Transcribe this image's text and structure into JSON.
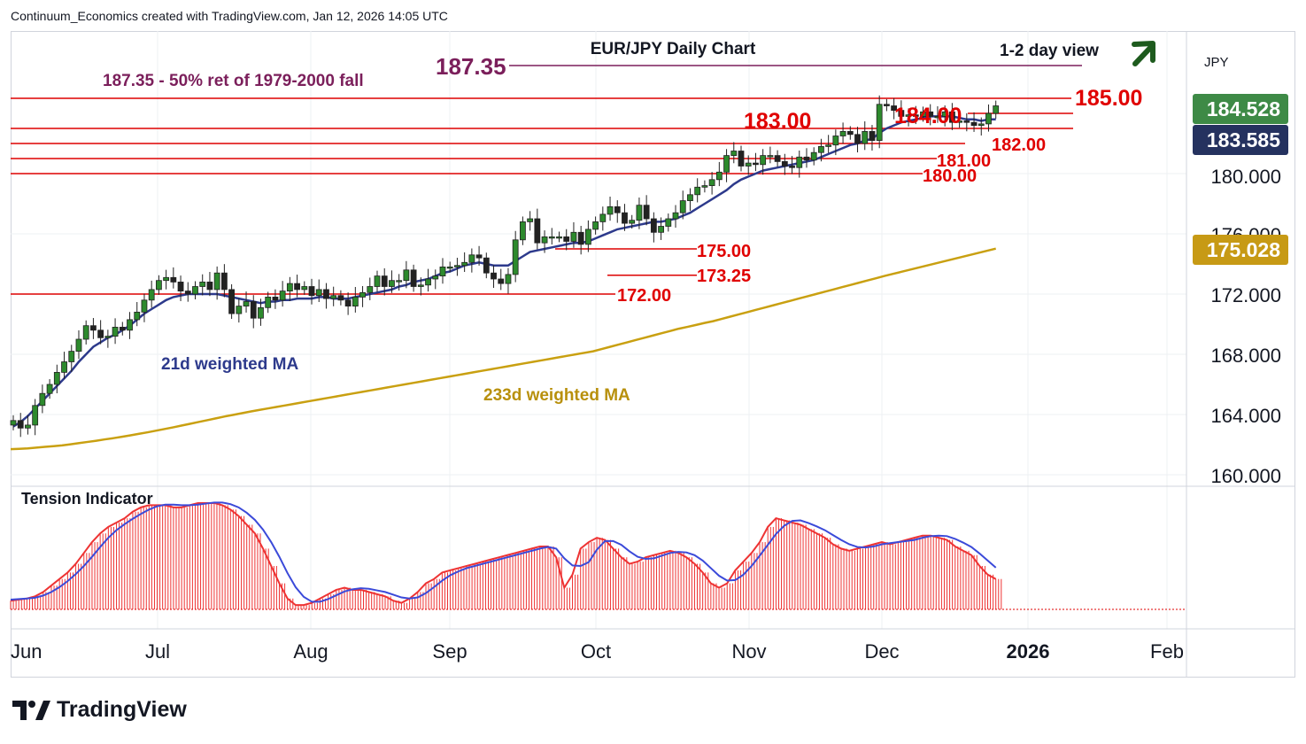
{
  "header": {
    "attribution": "Continuum_Economics created with TradingView.com, Jan 12, 2026 14:05 UTC"
  },
  "branding": {
    "logo_text": "TradingView"
  },
  "colors": {
    "up_candle": "#ffffff",
    "down_candle": "#222222",
    "up_candle_alt": "#2d8a2d",
    "ma21": "#2d3a8c",
    "ma233": "#c9a011",
    "level_line": "#dd0000",
    "target_line": "#7b1f5b",
    "tension_bars": "#ee3333",
    "tension_line": "#3b4ad9",
    "arrow": "#1e5b1e",
    "last_price_bg": "#3e8a46",
    "ma21_bg": "#25325f",
    "ma233_bg": "#c79a15"
  },
  "chart_data": {
    "type": "candlestick",
    "title": "EUR/JPY Daily Chart",
    "subtitle": "1-2 day view",
    "outlook_icon": "up-arrow-icon",
    "currency_label": "JPY",
    "x_ticks": [
      "Jun",
      "Jul",
      "Aug",
      "Sep",
      "Oct",
      "Nov",
      "Dec",
      "2026",
      "Feb"
    ],
    "y_ticks": [
      "160.000",
      "164.000",
      "168.000",
      "172.000",
      "176.000",
      "180.000"
    ],
    "y_range": [
      159.5,
      190.0
    ],
    "price_labels": {
      "last": "184.528",
      "ma21": "183.585",
      "ma233": "175.028"
    },
    "annotations": {
      "target_value": "187.35",
      "target_note": "187.35 - 50% ret of 1979-2000 fall",
      "ma21_label": "21d weighted MA",
      "ma233_label": "233d weighted MA",
      "tension_title": "Tension Indicator"
    },
    "levels": [
      {
        "value": 185.0,
        "label": "185.00"
      },
      {
        "value": 184.0,
        "label": "184.00"
      },
      {
        "value": 183.0,
        "label": "183.00"
      },
      {
        "value": 182.0,
        "label": "182.00"
      },
      {
        "value": 181.0,
        "label": "181.00"
      },
      {
        "value": 180.0,
        "label": "180.00"
      },
      {
        "value": 175.0,
        "label": "175.00"
      },
      {
        "value": 173.25,
        "label": "173.25"
      },
      {
        "value": 172.0,
        "label": "172.00"
      }
    ],
    "target_level": 187.35,
    "closes": [
      163.6,
      163.1,
      163.3,
      164.6,
      165.4,
      166.0,
      166.8,
      167.5,
      168.2,
      169.0,
      169.9,
      169.6,
      169.1,
      169.2,
      169.8,
      169.6,
      170.3,
      170.8,
      171.6,
      172.3,
      172.9,
      173.1,
      172.8,
      172.2,
      172.0,
      172.5,
      172.8,
      172.3,
      173.4,
      172.3,
      170.7,
      171.2,
      171.5,
      170.4,
      171.1,
      171.8,
      171.6,
      172.2,
      172.7,
      172.3,
      172.5,
      171.9,
      172.3,
      171.7,
      171.9,
      171.6,
      171.2,
      171.8,
      172.1,
      172.5,
      173.2,
      172.5,
      172.9,
      172.9,
      173.6,
      172.5,
      172.6,
      173.0,
      173.2,
      173.8,
      173.8,
      173.9,
      174.1,
      174.6,
      174.4,
      173.4,
      173.0,
      172.7,
      173.3,
      175.6,
      176.8,
      177.0,
      175.4,
      175.8,
      175.8,
      175.8,
      175.5,
      176.1,
      175.3,
      176.3,
      176.8,
      177.3,
      177.8,
      177.4,
      176.7,
      176.9,
      177.9,
      177.0,
      176.1,
      176.5,
      177.0,
      177.4,
      178.2,
      178.6,
      179.1,
      179.2,
      179.6,
      180.1,
      181.2,
      181.5,
      180.5,
      180.7,
      180.6,
      181.2,
      181.2,
      180.8,
      180.5,
      180.4,
      181.1,
      180.9,
      181.4,
      181.8,
      181.9,
      182.5,
      182.8,
      182.6,
      182.0,
      182.8,
      182.2,
      184.6,
      184.5,
      184.2,
      183.8,
      183.9,
      183.8,
      184.1,
      183.8,
      183.8,
      184.1,
      183.4,
      183.5,
      183.4,
      183.2,
      183.3,
      184.0,
      184.5
    ],
    "ma21": [
      163.2,
      163.5,
      163.9,
      164.4,
      164.9,
      165.4,
      165.9,
      166.4,
      166.9,
      167.5,
      168.0,
      168.5,
      168.8,
      169.1,
      169.3,
      169.6,
      169.9,
      170.3,
      170.7,
      171.0,
      171.3,
      171.6,
      171.8,
      171.9,
      172.0,
      172.0,
      172.0,
      172.0,
      172.0,
      171.9,
      171.8,
      171.7,
      171.6,
      171.5,
      171.4,
      171.5,
      171.5,
      171.6,
      171.6,
      171.7,
      171.7,
      171.7,
      171.8,
      171.8,
      171.7,
      171.7,
      171.7,
      171.8,
      171.9,
      172.0,
      172.1,
      172.2,
      172.3,
      172.5,
      172.6,
      172.8,
      172.9,
      173.0,
      173.2,
      173.4,
      173.5,
      173.7,
      173.9,
      174.0,
      174.1,
      174.0,
      173.9,
      173.9,
      173.9,
      174.2,
      174.5,
      174.8,
      174.9,
      175.0,
      175.1,
      175.2,
      175.3,
      175.4,
      175.4,
      175.5,
      175.7,
      175.9,
      176.1,
      176.3,
      176.4,
      176.5,
      176.6,
      176.7,
      176.8,
      176.8,
      176.9,
      177.0,
      177.2,
      177.4,
      177.7,
      178.0,
      178.3,
      178.6,
      178.9,
      179.3,
      179.6,
      179.8,
      180.0,
      180.2,
      180.3,
      180.4,
      180.5,
      180.6,
      180.7,
      180.8,
      180.9,
      181.1,
      181.3,
      181.5,
      181.7,
      181.9,
      182.0,
      182.2,
      182.3,
      182.7,
      183.0,
      183.2,
      183.4,
      183.5,
      183.6,
      183.7,
      183.8,
      183.8,
      183.8,
      183.8,
      183.7,
      183.6,
      183.6,
      183.5,
      183.6,
      183.6
    ],
    "ma233": [
      161.7,
      161.72,
      161.75,
      161.8,
      161.85,
      161.9,
      161.95,
      162.02,
      162.1,
      162.18,
      162.26,
      162.35,
      162.43,
      162.52,
      162.62,
      162.72,
      162.82,
      162.93,
      163.04,
      163.15,
      163.27,
      163.39,
      163.51,
      163.63,
      163.75,
      163.87,
      163.98,
      164.09,
      164.2,
      164.3,
      164.4,
      164.5,
      164.6,
      164.7,
      164.8,
      164.9,
      165.0,
      165.1,
      165.2,
      165.3,
      165.4,
      165.5,
      165.6,
      165.7,
      165.8,
      165.9,
      166.0,
      166.1,
      166.2,
      166.3,
      166.4,
      166.5,
      166.6,
      166.7,
      166.8,
      166.9,
      167.0,
      167.1,
      167.2,
      167.3,
      167.4,
      167.5,
      167.6,
      167.7,
      167.8,
      167.9,
      168.0,
      168.1,
      168.2,
      168.35,
      168.5,
      168.65,
      168.8,
      168.95,
      169.1,
      169.25,
      169.4,
      169.55,
      169.7,
      169.82,
      169.95,
      170.08,
      170.2,
      170.35,
      170.5,
      170.65,
      170.8,
      170.95,
      171.1,
      171.25,
      171.4,
      171.55,
      171.7,
      171.85,
      172.0,
      172.15,
      172.3,
      172.45,
      172.6,
      172.75,
      172.9,
      173.05,
      173.2,
      173.34,
      173.48,
      173.62,
      173.76,
      173.9,
      174.04,
      174.18,
      174.32,
      174.46,
      174.6,
      174.74,
      174.88,
      175.02
    ],
    "tension": [
      4,
      4.5,
      5,
      6,
      8,
      11,
      14,
      17,
      21,
      26,
      31,
      35,
      38,
      40,
      42,
      45,
      47,
      48,
      48,
      48,
      47,
      47,
      48,
      49,
      49,
      49,
      48,
      46,
      43,
      39,
      35,
      28,
      20,
      12,
      5,
      2,
      2,
      3,
      5,
      7,
      9,
      10,
      9,
      9,
      8,
      7,
      6,
      4,
      3,
      5,
      8,
      12,
      14,
      17,
      18,
      19,
      20,
      21,
      22,
      23,
      24,
      25,
      26,
      27,
      28,
      29,
      29,
      24,
      10,
      16,
      28,
      31,
      33,
      32,
      28,
      24,
      21,
      22,
      24,
      25,
      26,
      27,
      26,
      24,
      21,
      17,
      12,
      10,
      12,
      18,
      22,
      26,
      31,
      38,
      42,
      41,
      40,
      39,
      37,
      35,
      33,
      30,
      28,
      27,
      28,
      29,
      30,
      31,
      30,
      31,
      32,
      33,
      34,
      34,
      33,
      32,
      29,
      27,
      25,
      20,
      16,
      14
    ]
  }
}
